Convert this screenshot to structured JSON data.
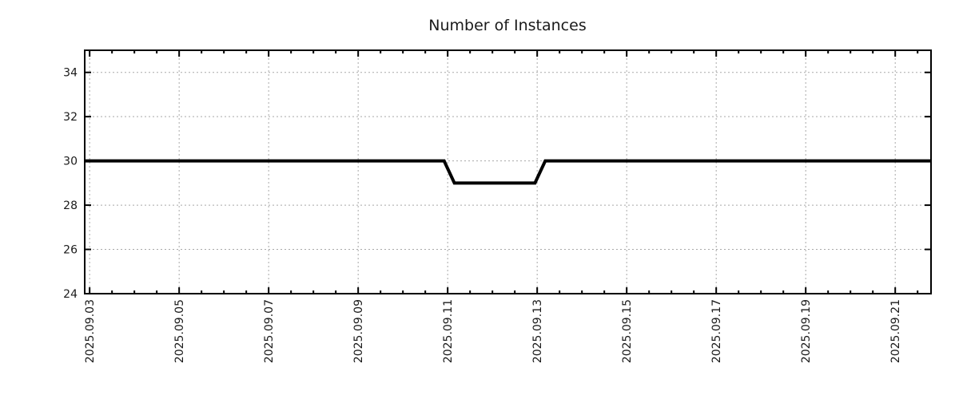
{
  "chart_data": {
    "type": "line",
    "title": "Number of Instances",
    "legend": "none",
    "grid": true,
    "x_axis": {
      "day_zero": "2025.09.03",
      "tick_labels": [
        "2025.09.03",
        "2025.09.05",
        "2025.09.07",
        "2025.09.09",
        "2025.09.11",
        "2025.09.13",
        "2025.09.15",
        "2025.09.17",
        "2025.09.19",
        "2025.09.21"
      ],
      "tick_day_offsets": [
        0,
        2,
        4,
        6,
        8,
        10,
        12,
        14,
        16,
        18
      ],
      "minor_tick_step_days": 0.5,
      "range_days": [
        -0.11,
        18.8
      ]
    },
    "y_axis": {
      "ticks": [
        24,
        26,
        28,
        30,
        32,
        34
      ],
      "range": [
        24,
        35
      ]
    },
    "series": [
      {
        "name": "instances",
        "color": "#000000",
        "points": [
          {
            "day": -0.11,
            "value": 30
          },
          {
            "day": 7.92,
            "value": 30
          },
          {
            "day": 8.15,
            "value": 29
          },
          {
            "day": 9.95,
            "value": 29
          },
          {
            "day": 10.18,
            "value": 30
          },
          {
            "day": 18.8,
            "value": 30
          }
        ]
      }
    ],
    "colors": {
      "grid": "#a8a8a8",
      "axis": "#000000",
      "text": "#1a1a1a",
      "background": "#ffffff"
    }
  }
}
